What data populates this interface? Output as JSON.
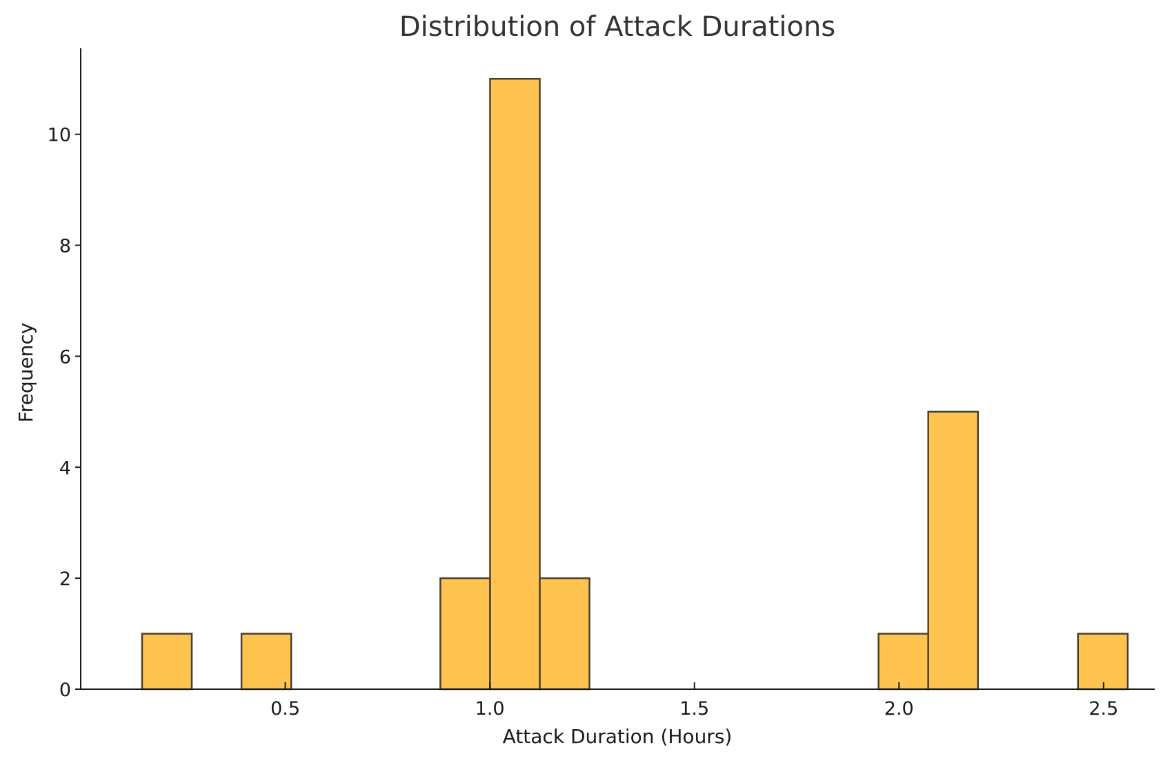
{
  "chart_data": {
    "type": "bar",
    "subtype": "histogram",
    "title": "Distribution of Attack Durations",
    "xlabel": "Attack Duration (Hours)",
    "ylabel": "Frequency",
    "bin_width": 0.1215,
    "bins": [
      {
        "start": 0.15,
        "end": 0.2715,
        "count": 1
      },
      {
        "start": 0.393,
        "end": 0.5145,
        "count": 1
      },
      {
        "start": 0.879,
        "end": 1.0005,
        "count": 2
      },
      {
        "start": 1.0005,
        "end": 1.122,
        "count": 11
      },
      {
        "start": 1.122,
        "end": 1.2435,
        "count": 2
      },
      {
        "start": 1.95,
        "end": 2.0715,
        "count": 1
      },
      {
        "start": 2.0715,
        "end": 2.193,
        "count": 5
      },
      {
        "start": 2.4375,
        "end": 2.559,
        "count": 1
      }
    ],
    "xlim": [
      0.0,
      2.625
    ],
    "ylim": [
      0,
      11.55
    ],
    "xticks": [
      {
        "value": 0.5,
        "label": "0.5"
      },
      {
        "value": 1.0,
        "label": "1.0"
      },
      {
        "value": 1.5,
        "label": "1.5"
      },
      {
        "value": 2.0,
        "label": "2.0"
      },
      {
        "value": 2.5,
        "label": "2.5"
      }
    ],
    "yticks": [
      {
        "value": 0,
        "label": "0"
      },
      {
        "value": 2,
        "label": "2"
      },
      {
        "value": 4,
        "label": "4"
      },
      {
        "value": 6,
        "label": "6"
      },
      {
        "value": 8,
        "label": "8"
      },
      {
        "value": 10,
        "label": "10"
      }
    ],
    "grid": false,
    "colors": {
      "bar_fill": "#fec44f",
      "bar_edge": "#4a4030",
      "axis": "#1a1a1a",
      "title": "#333333"
    }
  }
}
